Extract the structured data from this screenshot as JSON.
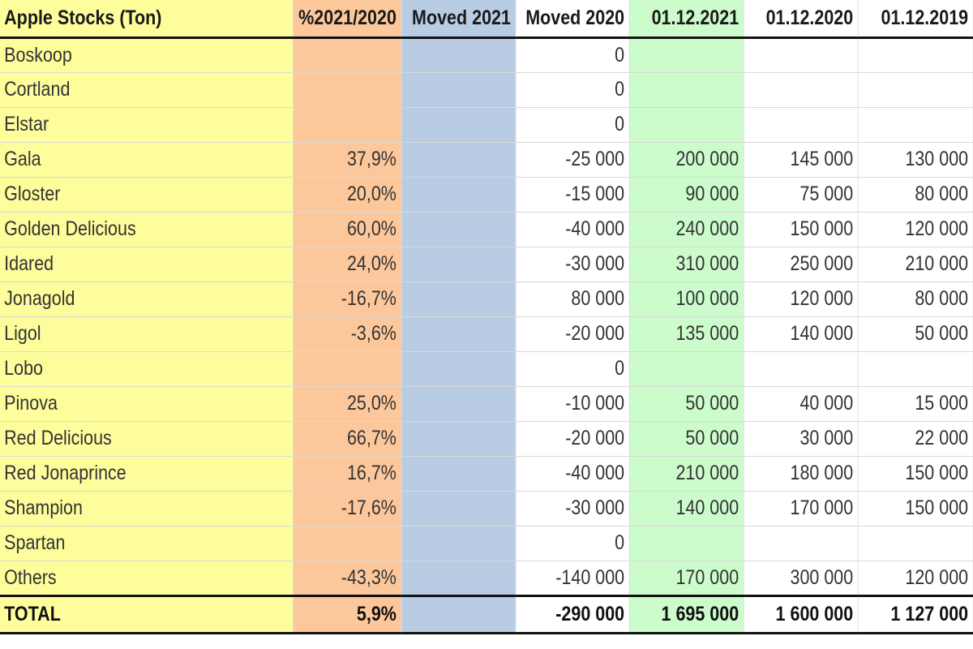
{
  "chart_data": {
    "type": "table",
    "title": "Apple Stocks (Ton)",
    "columns": [
      "Apple Stocks (Ton)",
      "%2021/2020",
      "Moved 2021",
      "Moved 2020",
      "01.12.2021",
      "01.12.2020",
      "01.12.2019"
    ],
    "rows": [
      {
        "variety": "Boskoop",
        "pct": "",
        "moved_2021": "",
        "moved_2020": "0",
        "stock_2021": "",
        "stock_2020": "",
        "stock_2019": ""
      },
      {
        "variety": "Cortland",
        "pct": "",
        "moved_2021": "",
        "moved_2020": "0",
        "stock_2021": "",
        "stock_2020": "",
        "stock_2019": ""
      },
      {
        "variety": "Elstar",
        "pct": "",
        "moved_2021": "",
        "moved_2020": "0",
        "stock_2021": "",
        "stock_2020": "",
        "stock_2019": ""
      },
      {
        "variety": "Gala",
        "pct": "37,9%",
        "moved_2021": "",
        "moved_2020": "-25 000",
        "stock_2021": "200 000",
        "stock_2020": "145 000",
        "stock_2019": "130 000"
      },
      {
        "variety": "Gloster",
        "pct": "20,0%",
        "moved_2021": "",
        "moved_2020": "-15 000",
        "stock_2021": "90 000",
        "stock_2020": "75 000",
        "stock_2019": "80 000"
      },
      {
        "variety": "Golden Delicious",
        "pct": "60,0%",
        "moved_2021": "",
        "moved_2020": "-40 000",
        "stock_2021": "240 000",
        "stock_2020": "150 000",
        "stock_2019": "120 000"
      },
      {
        "variety": "Idared",
        "pct": "24,0%",
        "moved_2021": "",
        "moved_2020": "-30 000",
        "stock_2021": "310 000",
        "stock_2020": "250 000",
        "stock_2019": "210 000"
      },
      {
        "variety": "Jonagold",
        "pct": "-16,7%",
        "moved_2021": "",
        "moved_2020": "80 000",
        "stock_2021": "100 000",
        "stock_2020": "120 000",
        "stock_2019": "80 000"
      },
      {
        "variety": "Ligol",
        "pct": "-3,6%",
        "moved_2021": "",
        "moved_2020": "-20 000",
        "stock_2021": "135 000",
        "stock_2020": "140 000",
        "stock_2019": "50 000"
      },
      {
        "variety": "Lobo",
        "pct": "",
        "moved_2021": "",
        "moved_2020": "0",
        "stock_2021": "",
        "stock_2020": "",
        "stock_2019": ""
      },
      {
        "variety": "Pinova",
        "pct": "25,0%",
        "moved_2021": "",
        "moved_2020": "-10 000",
        "stock_2021": "50 000",
        "stock_2020": "40 000",
        "stock_2019": "15 000"
      },
      {
        "variety": "Red Delicious",
        "pct": "66,7%",
        "moved_2021": "",
        "moved_2020": "-20 000",
        "stock_2021": "50 000",
        "stock_2020": "30 000",
        "stock_2019": "22 000"
      },
      {
        "variety": "Red Jonaprince",
        "pct": "16,7%",
        "moved_2021": "",
        "moved_2020": "-40 000",
        "stock_2021": "210 000",
        "stock_2020": "180 000",
        "stock_2019": "150 000"
      },
      {
        "variety": "Shampion",
        "pct": "-17,6%",
        "moved_2021": "",
        "moved_2020": "-30 000",
        "stock_2021": "140 000",
        "stock_2020": "170 000",
        "stock_2019": "150 000"
      },
      {
        "variety": "Spartan",
        "pct": "",
        "moved_2021": "",
        "moved_2020": "0",
        "stock_2021": "",
        "stock_2020": "",
        "stock_2019": ""
      },
      {
        "variety": "Others",
        "pct": "-43,3%",
        "moved_2021": "",
        "moved_2020": "-140 000",
        "stock_2021": "170 000",
        "stock_2020": "300 000",
        "stock_2019": "120 000"
      }
    ],
    "total": {
      "variety": "TOTAL",
      "pct": "5,9%",
      "moved_2021": "",
      "moved_2020": "-290 000",
      "stock_2021": "1 695 000",
      "stock_2020": "1 600 000",
      "stock_2019": "1 127 000"
    },
    "column_colors": {
      "variety": "#fdfd9c",
      "pct": "#fcc89b",
      "moved_2021": "#b8cce4",
      "moved_2020": "#ffffff",
      "stock_2021": "#ccfccc",
      "stock_2020": "#ffffff",
      "stock_2019": "#ffffff"
    }
  }
}
